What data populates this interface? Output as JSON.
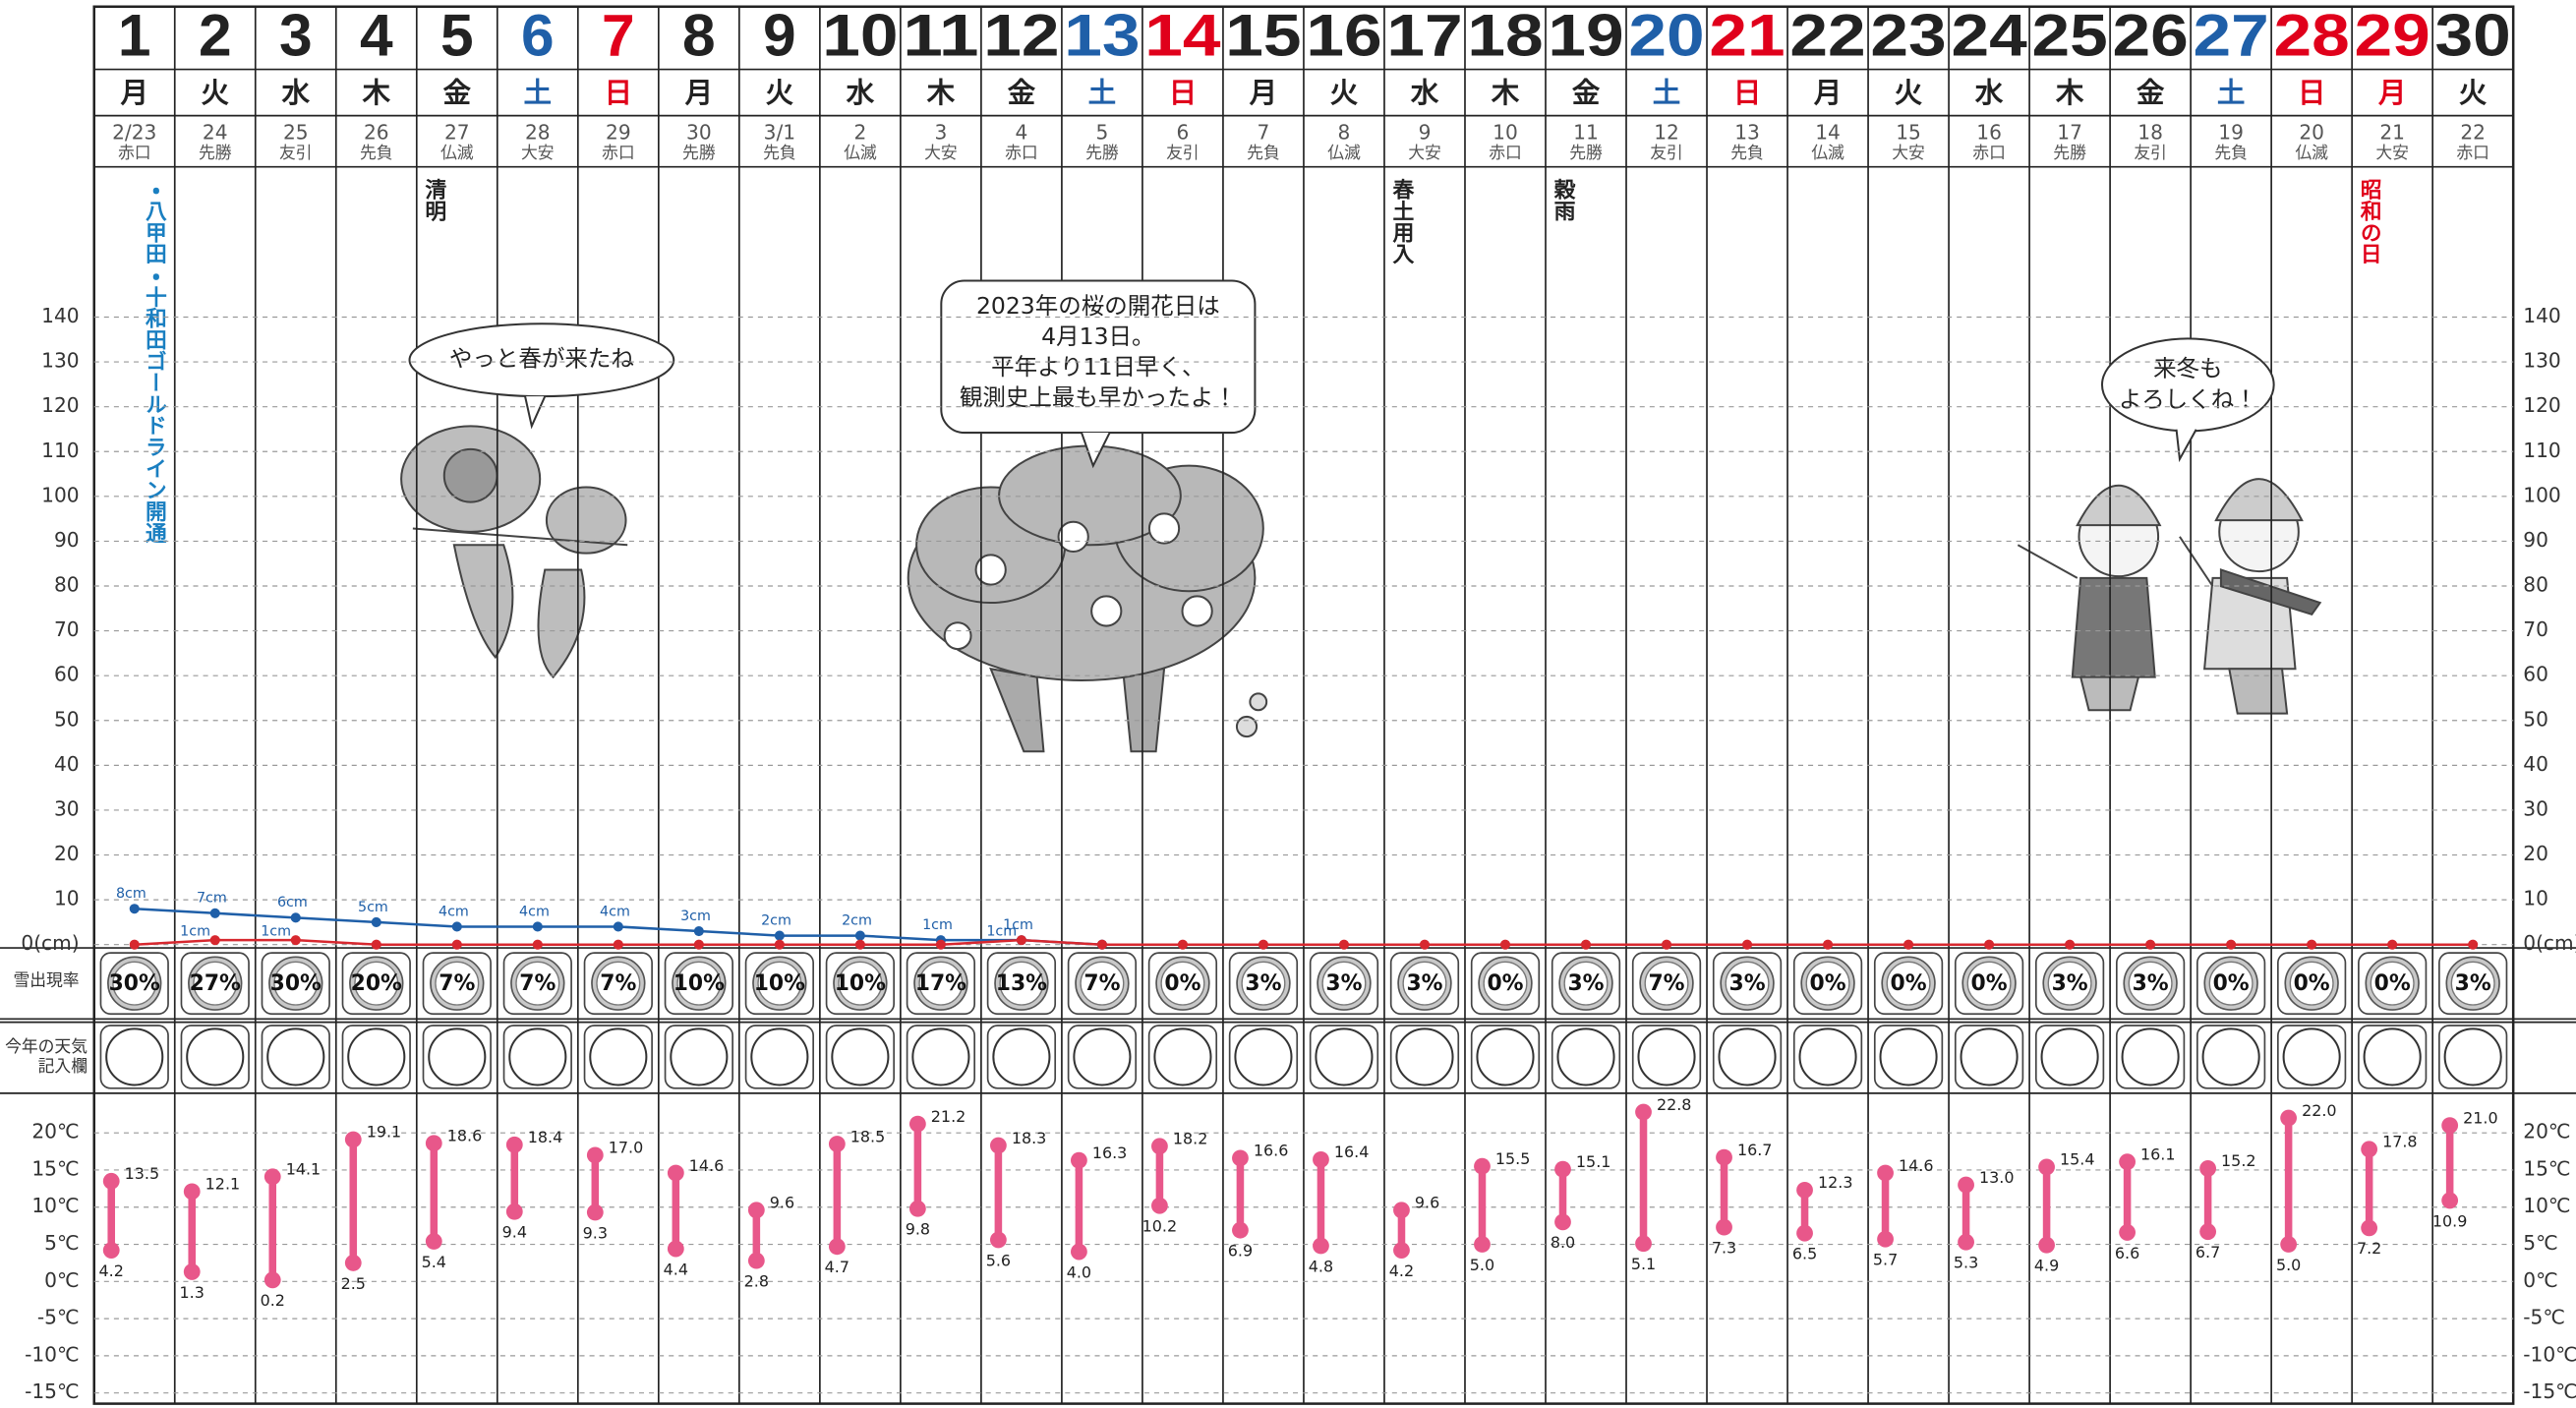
{
  "calendar": {
    "days": [
      {
        "day": "1",
        "weekday": "月",
        "lunar": "2/23",
        "rokuyo": "赤口",
        "color": "#222222",
        "event": {
          "text": "・八甲田・十和田ゴールドライン開通",
          "color": "#1a7fc1"
        }
      },
      {
        "day": "2",
        "weekday": "火",
        "lunar": "24",
        "rokuyo": "先勝",
        "color": "#222222"
      },
      {
        "day": "3",
        "weekday": "水",
        "lunar": "25",
        "rokuyo": "友引",
        "color": "#222222"
      },
      {
        "day": "4",
        "weekday": "木",
        "lunar": "26",
        "rokuyo": "先負",
        "color": "#222222"
      },
      {
        "day": "5",
        "weekday": "金",
        "lunar": "27",
        "rokuyo": "仏滅",
        "color": "#222222",
        "event": {
          "text": "清明",
          "color": "#222222"
        }
      },
      {
        "day": "6",
        "weekday": "土",
        "lunar": "28",
        "rokuyo": "大安",
        "color": "#1f5fa8"
      },
      {
        "day": "7",
        "weekday": "日",
        "lunar": "29",
        "rokuyo": "赤口",
        "color": "#e0001b"
      },
      {
        "day": "8",
        "weekday": "月",
        "lunar": "30",
        "rokuyo": "先勝",
        "color": "#222222"
      },
      {
        "day": "9",
        "weekday": "火",
        "lunar": "3/1",
        "rokuyo": "先負",
        "color": "#222222"
      },
      {
        "day": "10",
        "weekday": "水",
        "lunar": "2",
        "rokuyo": "仏滅",
        "color": "#222222"
      },
      {
        "day": "11",
        "weekday": "木",
        "lunar": "3",
        "rokuyo": "大安",
        "color": "#222222"
      },
      {
        "day": "12",
        "weekday": "金",
        "lunar": "4",
        "rokuyo": "赤口",
        "color": "#222222"
      },
      {
        "day": "13",
        "weekday": "土",
        "lunar": "5",
        "rokuyo": "先勝",
        "color": "#1f5fa8"
      },
      {
        "day": "14",
        "weekday": "日",
        "lunar": "6",
        "rokuyo": "友引",
        "color": "#e0001b"
      },
      {
        "day": "15",
        "weekday": "月",
        "lunar": "7",
        "rokuyo": "先負",
        "color": "#222222"
      },
      {
        "day": "16",
        "weekday": "火",
        "lunar": "8",
        "rokuyo": "仏滅",
        "color": "#222222"
      },
      {
        "day": "17",
        "weekday": "水",
        "lunar": "9",
        "rokuyo": "大安",
        "color": "#222222",
        "event": {
          "text": "春土用入",
          "color": "#222222"
        }
      },
      {
        "day": "18",
        "weekday": "木",
        "lunar": "10",
        "rokuyo": "赤口",
        "color": "#222222"
      },
      {
        "day": "19",
        "weekday": "金",
        "lunar": "11",
        "rokuyo": "先勝",
        "color": "#222222",
        "event": {
          "text": "穀雨",
          "color": "#222222"
        }
      },
      {
        "day": "20",
        "weekday": "土",
        "lunar": "12",
        "rokuyo": "友引",
        "color": "#1f5fa8"
      },
      {
        "day": "21",
        "weekday": "日",
        "lunar": "13",
        "rokuyo": "先負",
        "color": "#e0001b"
      },
      {
        "day": "22",
        "weekday": "月",
        "lunar": "14",
        "rokuyo": "仏滅",
        "color": "#222222"
      },
      {
        "day": "23",
        "weekday": "火",
        "lunar": "15",
        "rokuyo": "大安",
        "color": "#222222"
      },
      {
        "day": "24",
        "weekday": "水",
        "lunar": "16",
        "rokuyo": "赤口",
        "color": "#222222"
      },
      {
        "day": "25",
        "weekday": "木",
        "lunar": "17",
        "rokuyo": "先勝",
        "color": "#222222"
      },
      {
        "day": "26",
        "weekday": "金",
        "lunar": "18",
        "rokuyo": "友引",
        "color": "#222222"
      },
      {
        "day": "27",
        "weekday": "土",
        "lunar": "19",
        "rokuyo": "先負",
        "color": "#1f5fa8"
      },
      {
        "day": "28",
        "weekday": "日",
        "lunar": "20",
        "rokuyo": "仏滅",
        "color": "#e0001b"
      },
      {
        "day": "29",
        "weekday": "月",
        "lunar": "21",
        "rokuyo": "大安",
        "color": "#e0001b",
        "event": {
          "text": "昭和の日",
          "color": "#e0001b"
        }
      },
      {
        "day": "30",
        "weekday": "火",
        "lunar": "22",
        "rokuyo": "赤口",
        "color": "#222222"
      }
    ],
    "row_labels": {
      "snow_probability": "雪出現率",
      "weather": [
        "今年の天気",
        "記入欄"
      ]
    },
    "bubbles": [
      {
        "lines": [
          "やっと春が来たね"
        ]
      },
      {
        "lines": [
          "2023年の桜の開花日は",
          "4月13日。",
          "平年より11日早く、",
          "観測史上最も早かったよ！"
        ]
      },
      {
        "lines": [
          "来冬も",
          "よろしくね！"
        ]
      }
    ]
  },
  "chart_data": [
    {
      "type": "line",
      "ylim": [
        0,
        140
      ],
      "yticks": [
        {
          "value": 0,
          "label": "0(cm)"
        },
        10,
        20,
        30,
        40,
        50,
        60,
        70,
        80,
        90,
        100,
        110,
        120,
        130,
        140
      ],
      "grid": true,
      "series": [
        {
          "color": "#1f5fa8",
          "values": [
            8,
            7,
            6,
            5,
            4,
            4,
            4,
            3,
            2,
            2,
            1,
            1,
            0,
            null,
            null,
            null,
            null,
            null,
            null,
            null,
            null,
            null,
            null,
            null,
            null,
            null,
            null,
            null,
            null,
            null
          ],
          "value_labels": [
            "8cm",
            "7cm",
            "6cm",
            "5cm",
            "4cm",
            "4cm",
            "4cm",
            "3cm",
            "2cm",
            "2cm",
            "1cm",
            "1cm",
            null,
            null,
            null,
            null,
            null,
            null,
            null,
            null,
            null,
            null,
            null,
            null,
            null,
            null,
            null,
            null,
            null,
            null
          ]
        },
        {
          "color": "#d7282f",
          "values": [
            0,
            1,
            1,
            0,
            0,
            0,
            0,
            0,
            0,
            0,
            0,
            1,
            0,
            0,
            0,
            0,
            0,
            0,
            0,
            0,
            0,
            0,
            0,
            0,
            0,
            0,
            0,
            0,
            0,
            0
          ],
          "value_labels": [
            null,
            "1cm",
            "1cm",
            null,
            null,
            null,
            null,
            null,
            null,
            null,
            null,
            "1cm",
            null,
            null,
            null,
            null,
            null,
            null,
            null,
            null,
            null,
            null,
            null,
            null,
            null,
            null,
            null,
            null,
            null,
            null
          ]
        }
      ]
    },
    {
      "type": "badge",
      "values": [
        30,
        27,
        30,
        20,
        7,
        7,
        7,
        10,
        10,
        10,
        17,
        13,
        7,
        0,
        3,
        3,
        3,
        0,
        3,
        7,
        3,
        0,
        0,
        0,
        3,
        3,
        0,
        0,
        0,
        3
      ],
      "value_labels": [
        "30%",
        "27%",
        "30%",
        "20%",
        "7%",
        "7%",
        "7%",
        "10%",
        "10%",
        "10%",
        "17%",
        "13%",
        "7%",
        "0%",
        "3%",
        "3%",
        "3%",
        "0%",
        "3%",
        "7%",
        "3%",
        "0%",
        "0%",
        "0%",
        "3%",
        "3%",
        "0%",
        "0%",
        "0%",
        "3%"
      ]
    },
    {
      "type": "range",
      "ylim": [
        -15,
        25
      ],
      "yticks": [
        {
          "value": 20,
          "label": "20℃"
        },
        {
          "value": 15,
          "label": "15℃"
        },
        {
          "value": 10,
          "label": "10℃"
        },
        {
          "value": 5,
          "label": "5℃"
        },
        {
          "value": 0,
          "label": "0℃"
        },
        {
          "value": -5,
          "label": "-5℃"
        },
        {
          "value": -10,
          "label": "-10℃"
        },
        {
          "value": -15,
          "label": "-15℃"
        }
      ],
      "grid": true,
      "color": "#e8578a",
      "high": [
        13.5,
        12.1,
        14.1,
        19.1,
        18.6,
        18.4,
        17.0,
        14.6,
        9.6,
        18.5,
        21.2,
        18.3,
        16.3,
        18.2,
        16.6,
        16.4,
        9.6,
        15.5,
        15.1,
        22.8,
        16.7,
        12.3,
        14.6,
        13.0,
        15.4,
        16.1,
        15.2,
        22.0,
        17.8,
        21.0
      ],
      "high_labels": [
        "13.5",
        "12.1",
        "14.1",
        "19.1",
        "18.6",
        "18.4",
        "17.0",
        "14.6",
        "9.6",
        "18.5",
        "21.2",
        "18.3",
        "16.3",
        "18.2",
        "16.6",
        "16.4",
        "9.6",
        "15.5",
        "15.1",
        "22.8",
        "16.7",
        "12.3",
        "14.6",
        "13.0",
        "15.4",
        "16.1",
        "15.2",
        "22.0",
        "17.8",
        "21.0"
      ],
      "low": [
        4.2,
        1.3,
        0.2,
        2.5,
        5.4,
        9.4,
        9.3,
        4.4,
        2.8,
        4.7,
        9.8,
        5.6,
        4.0,
        10.2,
        6.9,
        4.8,
        4.2,
        5.0,
        8.0,
        5.1,
        7.3,
        6.5,
        5.7,
        5.3,
        4.9,
        6.6,
        6.7,
        5.0,
        7.2,
        10.9
      ],
      "low_labels": [
        "4.2",
        "1.3",
        "0.2",
        "2.5",
        "5.4",
        "9.4",
        "9.3",
        "4.4",
        "2.8",
        "4.7",
        "9.8",
        "5.6",
        "4.0",
        "10.2",
        "6.9",
        "4.8",
        "4.2",
        "5.0",
        "8.0",
        "5.1",
        "7.3",
        "6.5",
        "5.7",
        "5.3",
        "4.9",
        "6.6",
        "6.7",
        "5.0",
        "7.2",
        "10.9"
      ]
    }
  ]
}
